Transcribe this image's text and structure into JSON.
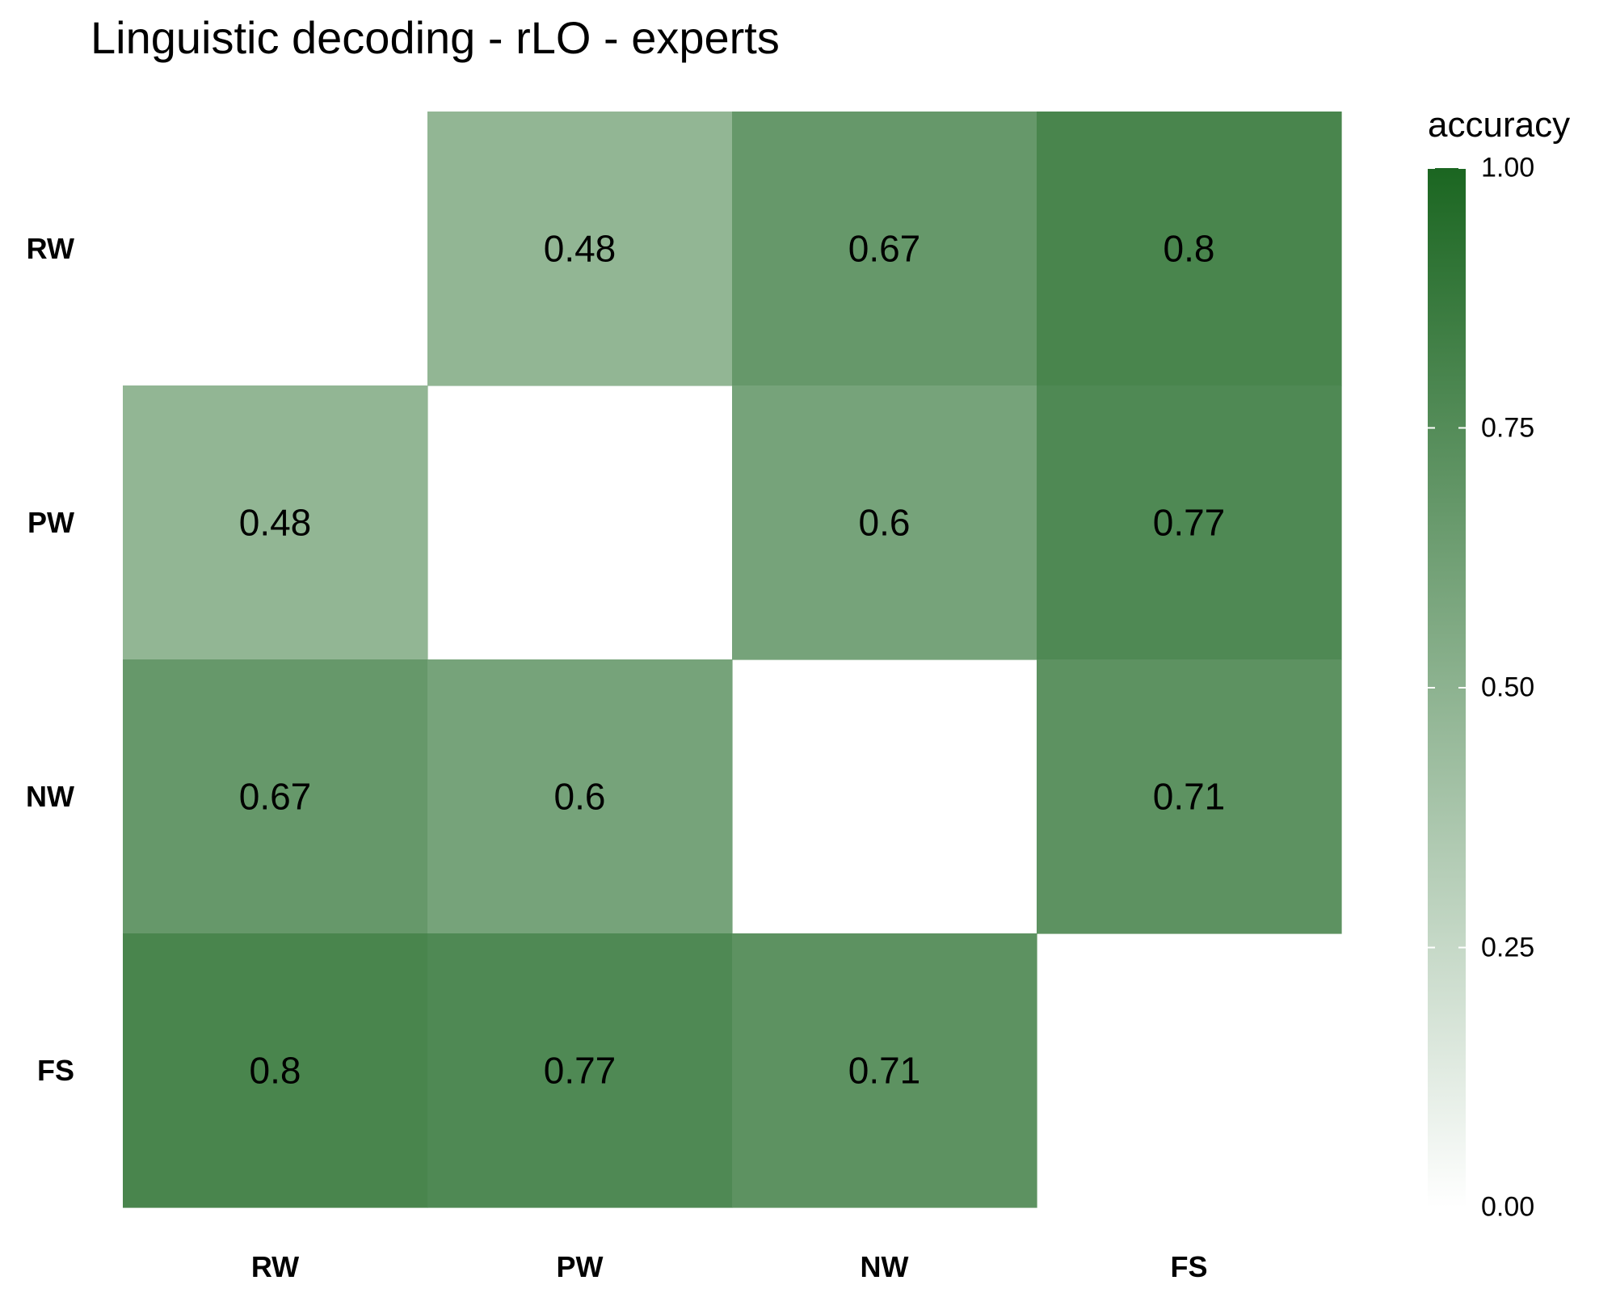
{
  "chart_data": {
    "type": "heatmap",
    "title": "Linguistic decoding - rLO - experts",
    "x_categories": [
      "RW",
      "PW",
      "NW",
      "FS"
    ],
    "y_categories": [
      "RW",
      "PW",
      "NW",
      "FS"
    ],
    "values": [
      [
        null,
        0.48,
        0.67,
        0.8
      ],
      [
        0.48,
        null,
        0.6,
        0.77
      ],
      [
        0.67,
        0.6,
        null,
        0.71
      ],
      [
        0.8,
        0.77,
        0.71,
        null
      ]
    ],
    "labels": [
      [
        "",
        "0.48",
        "0.67",
        "0.8"
      ],
      [
        "0.48",
        "",
        "0.6",
        "0.77"
      ],
      [
        "0.67",
        "0.6",
        "",
        "0.71"
      ],
      [
        "0.8",
        "0.77",
        "0.71",
        ""
      ]
    ],
    "legend": {
      "title": "accuracy",
      "range": [
        0,
        1
      ],
      "ticks": [
        0,
        0.25,
        0.5,
        0.75,
        1
      ],
      "tick_labels": [
        "0.00",
        "0.25",
        "0.50",
        "0.75",
        "1.00"
      ],
      "placement": "right"
    },
    "colors": {
      "low": "#ffffff",
      "high": "#1b6621"
    },
    "grid": false
  }
}
